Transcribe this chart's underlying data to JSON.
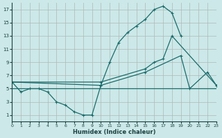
{
  "xlabel": "Humidex (Indice chaleur)",
  "bg_color": "#cce8e8",
  "grid_color": "#adb8b8",
  "line_color": "#1a6b6b",
  "xlim": [
    0,
    23
  ],
  "ylim": [
    0,
    18
  ],
  "xticks": [
    0,
    1,
    2,
    3,
    4,
    5,
    6,
    7,
    8,
    9,
    10,
    11,
    12,
    13,
    14,
    15,
    16,
    17,
    18,
    19,
    20,
    21,
    22,
    23
  ],
  "yticks": [
    1,
    3,
    5,
    7,
    9,
    11,
    13,
    15,
    17
  ],
  "series1_x": [
    0,
    1,
    2,
    3,
    4,
    5,
    6,
    7,
    8,
    9,
    10,
    11,
    12,
    13,
    14,
    15,
    16,
    17,
    18,
    19,
    20,
    21,
    22,
    23
  ],
  "series1_y": [
    6.0,
    4.5,
    5.0,
    5.0,
    4.5,
    3.0,
    2.5,
    1.5,
    1.0,
    1.0,
    5.5,
    9.0,
    12.0,
    13.5,
    14.5,
    15.5,
    17.0,
    17.5,
    16.5,
    13.0,
    null,
    null,
    null,
    null
  ],
  "series2_x": [
    0,
    10,
    15,
    16,
    17,
    18,
    23
  ],
  "series2_y": [
    6.0,
    6.0,
    8.0,
    9.0,
    9.5,
    13.0,
    5.5
  ],
  "series3_x": [
    0,
    10,
    15,
    19,
    20,
    22,
    23
  ],
  "series3_y": [
    6.0,
    5.5,
    7.5,
    10.0,
    5.0,
    7.5,
    5.5
  ],
  "series4_x": [
    0,
    23
  ],
  "series4_y": [
    5.0,
    5.0
  ]
}
